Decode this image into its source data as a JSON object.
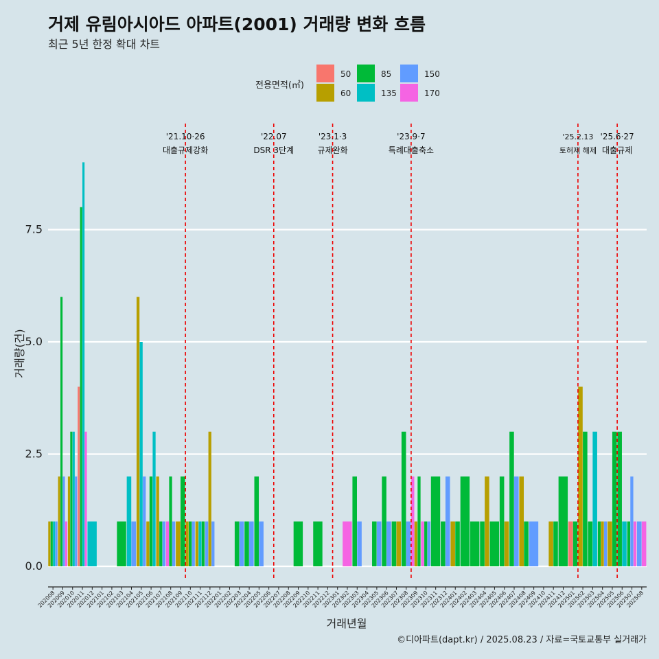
{
  "chart_data": {
    "type": "bar",
    "title": "거제 유림아시아드 아파트(2001) 거래량 변화 흐름",
    "subtitle": "최근 5년 한정 확대 차트",
    "xlabel": "거래년월",
    "ylabel": "거래량(건)",
    "ylim": [
      -0.3,
      9.0
    ],
    "yticks": [
      0.0,
      2.5,
      5.0,
      7.5
    ],
    "ytick_labels": [
      "0.0",
      "2.5",
      "5.0",
      "7.5"
    ],
    "legend": {
      "title": "전용면적(㎡)",
      "position": "top",
      "items": [
        {
          "label": "50",
          "color": "#F8766D"
        },
        {
          "label": "60",
          "color": "#B79F00"
        },
        {
          "label": "85",
          "color": "#00BA38"
        },
        {
          "label": "135",
          "color": "#00BFC4"
        },
        {
          "label": "150",
          "color": "#619CFF"
        },
        {
          "label": "170",
          "color": "#F564E3"
        }
      ]
    },
    "months": [
      "202008",
      "202009",
      "202010",
      "202011",
      "202012",
      "202101",
      "202102",
      "202103",
      "202104",
      "202105",
      "202106",
      "202107",
      "202108",
      "202109",
      "202110",
      "202111",
      "202112",
      "202201",
      "202202",
      "202203",
      "202204",
      "202205",
      "202206",
      "202207",
      "202208",
      "202209",
      "202210",
      "202211",
      "202212",
      "202301",
      "202302",
      "202303",
      "202304",
      "202305",
      "202306",
      "202307",
      "202308",
      "202309",
      "202310",
      "202311",
      "202312",
      "202401",
      "202402",
      "202403",
      "202404",
      "202405",
      "202406",
      "202407",
      "202408",
      "202409",
      "202410",
      "202411",
      "202412",
      "202501",
      "202502",
      "202503",
      "202504",
      "202505",
      "202506",
      "202507",
      "202508"
    ],
    "tick_labels": [
      "202008",
      "202009",
      "202010",
      "202011",
      "202012",
      "202101",
      "202102",
      "202103",
      "202104",
      "202105",
      "202106",
      "202107",
      "202108",
      "202109",
      "202110",
      "202111",
      "202112",
      "202201",
      "202202",
      "202203",
      "202204",
      "202205",
      "202206",
      "202207",
      "202208",
      "202209",
      "202210",
      "202211",
      "202212",
      "202301",
      "202302",
      "202303",
      "202304",
      "202305",
      "202306",
      "202307",
      "202308",
      "202309",
      "202310",
      "202311",
      "202312",
      "202401",
      "202402",
      "202403",
      "202404",
      "202405",
      "202406",
      "202407",
      "202408",
      "202409",
      "202410",
      "202411",
      "202412",
      "202501",
      "202502",
      "202503",
      "202504",
      "202505",
      "202506",
      "202507",
      "202508"
    ],
    "bars": [
      {
        "month": "202008",
        "segments": [
          {
            "area": "60",
            "value": 1
          },
          {
            "area": "85",
            "value": 1
          },
          {
            "area": "135",
            "value": 1
          },
          {
            "area": "150",
            "value": 1
          }
        ]
      },
      {
        "month": "202009",
        "segments": [
          {
            "area": "60",
            "value": 2
          },
          {
            "area": "85",
            "value": 6
          },
          {
            "area": "150",
            "value": 2
          },
          {
            "area": "170",
            "value": 1
          }
        ]
      },
      {
        "month": "202010",
        "segments": [
          {
            "area": "60",
            "value": 2
          },
          {
            "area": "85",
            "value": 3
          },
          {
            "area": "135",
            "value": 3
          },
          {
            "area": "150",
            "value": 2
          }
        ]
      },
      {
        "month": "202011",
        "segments": [
          {
            "area": "50",
            "value": 4
          },
          {
            "area": "85",
            "value": 8
          },
          {
            "area": "135",
            "value": 9
          },
          {
            "area": "170",
            "value": 3
          }
        ]
      },
      {
        "month": "202012",
        "segments": [
          {
            "area": "135",
            "value": 1
          }
        ]
      },
      {
        "month": "202103",
        "segments": [
          {
            "area": "85",
            "value": 1
          }
        ]
      },
      {
        "month": "202104",
        "segments": [
          {
            "area": "135",
            "value": 2
          },
          {
            "area": "150",
            "value": 1
          }
        ]
      },
      {
        "month": "202105",
        "segments": [
          {
            "area": "60",
            "value": 6
          },
          {
            "area": "135",
            "value": 5
          },
          {
            "area": "150",
            "value": 2
          }
        ]
      },
      {
        "month": "202106",
        "segments": [
          {
            "area": "60",
            "value": 1
          },
          {
            "area": "85",
            "value": 2
          },
          {
            "area": "135",
            "value": 3
          }
        ]
      },
      {
        "month": "202107",
        "segments": [
          {
            "area": "60",
            "value": 2
          },
          {
            "area": "85",
            "value": 1
          },
          {
            "area": "150",
            "value": 1
          }
        ]
      },
      {
        "month": "202108",
        "segments": [
          {
            "area": "170",
            "value": 1
          },
          {
            "area": "85",
            "value": 2
          },
          {
            "area": "150",
            "value": 1
          }
        ]
      },
      {
        "month": "202109",
        "segments": [
          {
            "area": "60",
            "value": 1
          },
          {
            "area": "85",
            "value": 2
          }
        ]
      },
      {
        "month": "202110",
        "segments": [
          {
            "area": "60",
            "value": 1
          },
          {
            "area": "85",
            "value": 1
          },
          {
            "area": "150",
            "value": 1
          }
        ]
      },
      {
        "month": "202111",
        "segments": [
          {
            "area": "60",
            "value": 1
          },
          {
            "area": "135",
            "value": 1
          },
          {
            "area": "85",
            "value": 1
          }
        ]
      },
      {
        "month": "202112",
        "segments": [
          {
            "area": "150",
            "value": 1
          },
          {
            "area": "60",
            "value": 3
          },
          {
            "area": "150",
            "value": 1
          }
        ]
      },
      {
        "month": "202203",
        "segments": [
          {
            "area": "85",
            "value": 1
          },
          {
            "area": "150",
            "value": 1
          }
        ]
      },
      {
        "month": "202204",
        "segments": [
          {
            "area": "85",
            "value": 1
          },
          {
            "area": "150",
            "value": 1
          }
        ]
      },
      {
        "month": "202205",
        "segments": [
          {
            "area": "85",
            "value": 2
          },
          {
            "area": "150",
            "value": 1
          }
        ]
      },
      {
        "month": "202209",
        "segments": [
          {
            "area": "85",
            "value": 1
          }
        ]
      },
      {
        "month": "202211",
        "segments": [
          {
            "area": "85",
            "value": 1
          }
        ]
      },
      {
        "month": "202302",
        "segments": [
          {
            "area": "170",
            "value": 1
          }
        ]
      },
      {
        "month": "202303",
        "segments": [
          {
            "area": "85",
            "value": 2
          },
          {
            "area": "150",
            "value": 1
          }
        ]
      },
      {
        "month": "202305",
        "segments": [
          {
            "area": "85",
            "value": 1
          },
          {
            "area": "150",
            "value": 1
          }
        ]
      },
      {
        "month": "202306",
        "segments": [
          {
            "area": "85",
            "value": 2
          },
          {
            "area": "150",
            "value": 1
          }
        ]
      },
      {
        "month": "202307",
        "segments": [
          {
            "area": "85",
            "value": 1
          },
          {
            "area": "60",
            "value": 1
          }
        ]
      },
      {
        "month": "202308",
        "segments": [
          {
            "area": "85",
            "value": 3
          },
          {
            "area": "150",
            "value": 1
          }
        ]
      },
      {
        "month": "202309",
        "segments": [
          {
            "area": "170",
            "value": 2
          },
          {
            "area": "60",
            "value": 1
          },
          {
            "area": "85",
            "value": 2
          }
        ]
      },
      {
        "month": "202310",
        "segments": [
          {
            "area": "170",
            "value": 1
          },
          {
            "area": "85",
            "value": 1
          },
          {
            "area": "150",
            "value": 1
          }
        ]
      },
      {
        "month": "202311",
        "segments": [
          {
            "area": "85",
            "value": 2
          }
        ]
      },
      {
        "month": "202312",
        "segments": [
          {
            "area": "85",
            "value": 1
          },
          {
            "area": "150",
            "value": 2
          }
        ]
      },
      {
        "month": "202401",
        "segments": [
          {
            "area": "60",
            "value": 1
          },
          {
            "area": "85",
            "value": 1
          }
        ]
      },
      {
        "month": "202402",
        "segments": [
          {
            "area": "85",
            "value": 2
          }
        ]
      },
      {
        "month": "202403",
        "segments": [
          {
            "area": "85",
            "value": 1
          }
        ]
      },
      {
        "month": "202404",
        "segments": [
          {
            "area": "85",
            "value": 1
          },
          {
            "area": "60",
            "value": 2
          }
        ]
      },
      {
        "month": "202405",
        "segments": [
          {
            "area": "85",
            "value": 1
          }
        ]
      },
      {
        "month": "202406",
        "segments": [
          {
            "area": "85",
            "value": 2
          },
          {
            "area": "60",
            "value": 1
          }
        ]
      },
      {
        "month": "202407",
        "segments": [
          {
            "area": "85",
            "value": 3
          },
          {
            "area": "150",
            "value": 2
          }
        ]
      },
      {
        "month": "202408",
        "segments": [
          {
            "area": "60",
            "value": 2
          },
          {
            "area": "85",
            "value": 1
          }
        ]
      },
      {
        "month": "202409",
        "segments": [
          {
            "area": "150",
            "value": 1
          }
        ]
      },
      {
        "month": "202411",
        "segments": [
          {
            "area": "60",
            "value": 1
          },
          {
            "area": "85",
            "value": 1
          }
        ]
      },
      {
        "month": "202412",
        "segments": [
          {
            "area": "85",
            "value": 2
          }
        ]
      },
      {
        "month": "202501",
        "segments": [
          {
            "area": "50",
            "value": 1
          },
          {
            "area": "85",
            "value": 1
          }
        ]
      },
      {
        "month": "202502",
        "segments": [
          {
            "area": "60",
            "value": 4
          },
          {
            "area": "85",
            "value": 3
          }
        ]
      },
      {
        "month": "202503",
        "segments": [
          {
            "area": "85",
            "value": 1
          },
          {
            "area": "135",
            "value": 3
          }
        ]
      },
      {
        "month": "202504",
        "segments": [
          {
            "area": "85",
            "value": 1
          },
          {
            "area": "60",
            "value": 1
          },
          {
            "area": "150",
            "value": 1
          }
        ]
      },
      {
        "month": "202505",
        "segments": [
          {
            "area": "60",
            "value": 1
          },
          {
            "area": "85",
            "value": 3
          }
        ]
      },
      {
        "month": "202506",
        "segments": [
          {
            "area": "85",
            "value": 3
          },
          {
            "area": "135",
            "value": 1
          }
        ]
      },
      {
        "month": "202507",
        "segments": [
          {
            "area": "85",
            "value": 1
          },
          {
            "area": "150",
            "value": 2
          },
          {
            "area": "170",
            "value": 1
          }
        ]
      },
      {
        "month": "202508",
        "segments": [
          {
            "area": "150",
            "value": 1
          },
          {
            "area": "170",
            "value": 1
          }
        ]
      }
    ],
    "events": [
      {
        "month": "202110",
        "date": "'21.10·26",
        "desc": "대출규제강화"
      },
      {
        "month": "202207",
        "date": "'22.07",
        "desc": "DSR 3단계"
      },
      {
        "month": "202301",
        "date": "'23.1·3",
        "desc": "규제완화"
      },
      {
        "month": "202309",
        "date": "'23.9·7",
        "desc": "특례대출축소"
      },
      {
        "month": "202502",
        "date": "'25.2.13",
        "desc": "토허제 해제",
        "small": true
      },
      {
        "month": "202506",
        "date": "'25.6·27",
        "desc": "대출규제"
      }
    ]
  },
  "caption": "©디아파트(dapt.kr) / 2025.08.23 / 자료=국토교통부 실거래가",
  "colors": {
    "background": "#d6e4ea",
    "grid": "#ffffff",
    "event_line": "#ee0000"
  }
}
